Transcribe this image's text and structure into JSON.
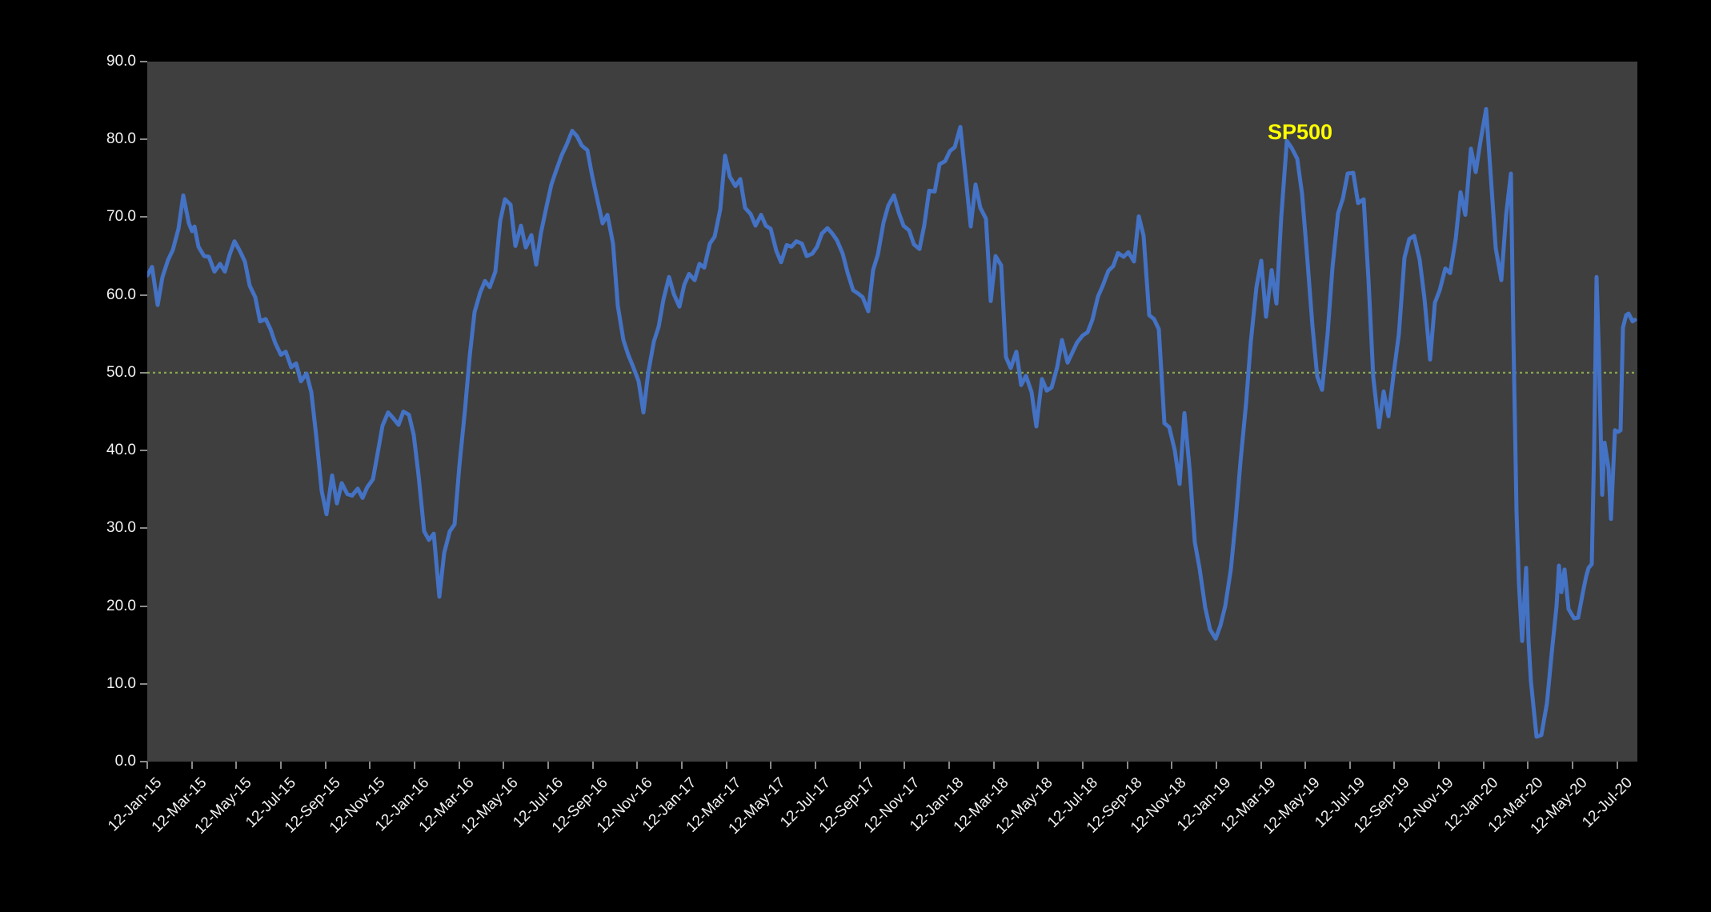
{
  "figure": {
    "background": "#000000",
    "plot_background": "#3F3F3F",
    "tick_color": "#8a8a8a",
    "label_color": "#F2F2F2"
  },
  "chart_data": {
    "type": "line",
    "title": "",
    "xlabel": "",
    "ylabel": "",
    "grid": "off",
    "legend": "none",
    "annotation": {
      "text": "SP500",
      "color": "#FFFF00"
    },
    "y_axis": {
      "min": 0,
      "max": 90,
      "tick_interval": 10,
      "tick_labels": [
        "0.0",
        "10.0",
        "20.0",
        "30.0",
        "40.0",
        "50.0",
        "60.0",
        "70.0",
        "80.0",
        "90.0"
      ]
    },
    "x_axis": {
      "tick_labels": [
        "12-Jan-15",
        "12-Mar-15",
        "12-May-15",
        "12-Jul-15",
        "12-Sep-15",
        "12-Nov-15",
        "12-Jan-16",
        "12-Mar-16",
        "12-May-16",
        "12-Jul-16",
        "12-Sep-16",
        "12-Nov-16",
        "12-Jan-17",
        "12-Mar-17",
        "12-May-17",
        "12-Jul-17",
        "12-Sep-17",
        "12-Nov-17",
        "12-Jan-18",
        "12-Mar-18",
        "12-May-18",
        "12-Jul-18",
        "12-Sep-18",
        "12-Nov-18",
        "12-Jan-19",
        "12-Mar-19",
        "12-May-19",
        "12-Jul-19",
        "12-Sep-19",
        "12-Nov-19",
        "12-Jan-20",
        "12-Mar-20",
        "12-May-20",
        "12-Jul-20"
      ]
    },
    "reference_line": {
      "value": 50.0,
      "color": "#87A84E",
      "style": "dotted"
    },
    "series": [
      {
        "name": "SP500",
        "color": "#4472C4",
        "points": [
          [
            184,
            62.5
          ],
          [
            190,
            63.6
          ],
          [
            197,
            58.7
          ],
          [
            203,
            62.3
          ],
          [
            210,
            64.5
          ],
          [
            216,
            65.8
          ],
          [
            223,
            68.5
          ],
          [
            229,
            72.8
          ],
          [
            236,
            69.2
          ],
          [
            240,
            68.2
          ],
          [
            243,
            68.8
          ],
          [
            248,
            66.2
          ],
          [
            255,
            65.0
          ],
          [
            261,
            64.9
          ],
          [
            268,
            63.0
          ],
          [
            275,
            64.0
          ],
          [
            281,
            63.0
          ],
          [
            287,
            65.2
          ],
          [
            293,
            66.9
          ],
          [
            300,
            65.6
          ],
          [
            306,
            64.3
          ],
          [
            312,
            61.2
          ],
          [
            319,
            59.7
          ],
          [
            325,
            56.6
          ],
          [
            332,
            56.9
          ],
          [
            338,
            55.6
          ],
          [
            344,
            53.8
          ],
          [
            351,
            52.3
          ],
          [
            357,
            52.7
          ],
          [
            364,
            50.7
          ],
          [
            370,
            51.2
          ],
          [
            376,
            48.9
          ],
          [
            383,
            49.9
          ],
          [
            389,
            47.5
          ],
          [
            395,
            42.0
          ],
          [
            402,
            34.8
          ],
          [
            408,
            31.8
          ],
          [
            415,
            36.8
          ],
          [
            421,
            33.2
          ],
          [
            427,
            35.8
          ],
          [
            434,
            34.4
          ],
          [
            440,
            34.2
          ],
          [
            447,
            35.1
          ],
          [
            453,
            33.9
          ],
          [
            459,
            35.3
          ],
          [
            466,
            36.3
          ],
          [
            472,
            39.7
          ],
          [
            478,
            43.2
          ],
          [
            485,
            44.9
          ],
          [
            491,
            44.2
          ],
          [
            498,
            43.3
          ],
          [
            504,
            45.0
          ],
          [
            511,
            44.6
          ],
          [
            517,
            42.0
          ],
          [
            523,
            36.8
          ],
          [
            530,
            29.6
          ],
          [
            536,
            28.5
          ],
          [
            542,
            29.3
          ],
          [
            549,
            21.2
          ],
          [
            555,
            26.8
          ],
          [
            562,
            29.6
          ],
          [
            568,
            30.5
          ],
          [
            574,
            38.0
          ],
          [
            581,
            45.2
          ],
          [
            587,
            52.2
          ],
          [
            593,
            57.8
          ],
          [
            600,
            60.3
          ],
          [
            606,
            61.8
          ],
          [
            612,
            61.0
          ],
          [
            619,
            63.0
          ],
          [
            625,
            69.5
          ],
          [
            631,
            72.3
          ],
          [
            638,
            71.6
          ],
          [
            644,
            66.3
          ],
          [
            651,
            68.9
          ],
          [
            657,
            66.1
          ],
          [
            664,
            67.7
          ],
          [
            670,
            63.9
          ],
          [
            676,
            68.0
          ],
          [
            683,
            71.4
          ],
          [
            689,
            74.2
          ],
          [
            695,
            76.0
          ],
          [
            702,
            78.0
          ],
          [
            708,
            79.3
          ],
          [
            715,
            81.1
          ],
          [
            721,
            80.4
          ],
          [
            727,
            79.2
          ],
          [
            734,
            78.6
          ],
          [
            740,
            75.3
          ],
          [
            747,
            72.0
          ],
          [
            753,
            69.2
          ],
          [
            759,
            70.3
          ],
          [
            766,
            66.6
          ],
          [
            772,
            58.6
          ],
          [
            779,
            54.2
          ],
          [
            785,
            52.3
          ],
          [
            791,
            50.8
          ],
          [
            798,
            48.9
          ],
          [
            804,
            44.9
          ],
          [
            810,
            50.0
          ],
          [
            817,
            54.0
          ],
          [
            823,
            55.9
          ],
          [
            829,
            59.4
          ],
          [
            836,
            62.3
          ],
          [
            842,
            60.1
          ],
          [
            849,
            58.5
          ],
          [
            855,
            61.3
          ],
          [
            861,
            62.7
          ],
          [
            868,
            61.9
          ],
          [
            874,
            64.0
          ],
          [
            880,
            63.5
          ],
          [
            887,
            66.6
          ],
          [
            893,
            67.5
          ],
          [
            900,
            71.0
          ],
          [
            906,
            77.9
          ],
          [
            912,
            75.2
          ],
          [
            919,
            74.0
          ],
          [
            925,
            74.9
          ],
          [
            931,
            71.2
          ],
          [
            938,
            70.4
          ],
          [
            944,
            68.9
          ],
          [
            951,
            70.3
          ],
          [
            957,
            68.9
          ],
          [
            963,
            68.5
          ],
          [
            970,
            65.7
          ],
          [
            976,
            64.2
          ],
          [
            983,
            66.4
          ],
          [
            989,
            66.2
          ],
          [
            995,
            66.9
          ],
          [
            1002,
            66.6
          ],
          [
            1008,
            65.0
          ],
          [
            1015,
            65.3
          ],
          [
            1021,
            66.2
          ],
          [
            1027,
            67.9
          ],
          [
            1034,
            68.6
          ],
          [
            1040,
            67.9
          ],
          [
            1046,
            67.0
          ],
          [
            1053,
            65.3
          ],
          [
            1059,
            62.9
          ],
          [
            1066,
            60.6
          ],
          [
            1072,
            60.2
          ],
          [
            1078,
            59.7
          ],
          [
            1085,
            57.9
          ],
          [
            1091,
            63.2
          ],
          [
            1097,
            65.2
          ],
          [
            1104,
            69.3
          ],
          [
            1110,
            71.5
          ],
          [
            1117,
            72.8
          ],
          [
            1123,
            70.6
          ],
          [
            1129,
            68.9
          ],
          [
            1136,
            68.3
          ],
          [
            1142,
            66.5
          ],
          [
            1149,
            65.9
          ],
          [
            1155,
            69.0
          ],
          [
            1161,
            73.4
          ],
          [
            1168,
            73.3
          ],
          [
            1174,
            76.8
          ],
          [
            1181,
            77.2
          ],
          [
            1187,
            78.5
          ],
          [
            1193,
            79.0
          ],
          [
            1200,
            81.6
          ],
          [
            1206,
            75.8
          ],
          [
            1213,
            68.8
          ],
          [
            1219,
            74.2
          ],
          [
            1225,
            71.2
          ],
          [
            1232,
            69.8
          ],
          [
            1238,
            59.2
          ],
          [
            1244,
            65.0
          ],
          [
            1251,
            63.8
          ],
          [
            1257,
            52.0
          ],
          [
            1263,
            50.6
          ],
          [
            1270,
            52.7
          ],
          [
            1276,
            48.4
          ],
          [
            1282,
            49.6
          ],
          [
            1289,
            47.5
          ],
          [
            1295,
            43.1
          ],
          [
            1302,
            49.2
          ],
          [
            1308,
            47.7
          ],
          [
            1314,
            48.1
          ],
          [
            1321,
            50.7
          ],
          [
            1327,
            54.2
          ],
          [
            1334,
            51.3
          ],
          [
            1340,
            52.6
          ],
          [
            1346,
            53.9
          ],
          [
            1353,
            54.8
          ],
          [
            1359,
            55.2
          ],
          [
            1365,
            56.8
          ],
          [
            1372,
            59.8
          ],
          [
            1378,
            61.2
          ],
          [
            1385,
            63.1
          ],
          [
            1391,
            63.7
          ],
          [
            1397,
            65.4
          ],
          [
            1404,
            64.9
          ],
          [
            1410,
            65.5
          ],
          [
            1417,
            64.3
          ],
          [
            1423,
            70.1
          ],
          [
            1429,
            67.6
          ],
          [
            1436,
            57.4
          ],
          [
            1442,
            56.9
          ],
          [
            1448,
            55.6
          ],
          [
            1455,
            43.5
          ],
          [
            1461,
            43.0
          ],
          [
            1468,
            40.0
          ],
          [
            1474,
            35.7
          ],
          [
            1480,
            44.8
          ],
          [
            1487,
            37.0
          ],
          [
            1493,
            28.2
          ],
          [
            1499,
            24.8
          ],
          [
            1506,
            19.8
          ],
          [
            1512,
            17.0
          ],
          [
            1519,
            15.8
          ],
          [
            1525,
            17.5
          ],
          [
            1531,
            20.0
          ],
          [
            1538,
            24.7
          ],
          [
            1544,
            31.0
          ],
          [
            1550,
            38.5
          ],
          [
            1557,
            46.0
          ],
          [
            1563,
            54.0
          ],
          [
            1570,
            61.0
          ],
          [
            1576,
            64.4
          ],
          [
            1582,
            57.2
          ],
          [
            1589,
            63.2
          ],
          [
            1595,
            58.9
          ],
          [
            1601,
            70.0
          ],
          [
            1608,
            79.8
          ],
          [
            1614,
            78.9
          ],
          [
            1621,
            77.5
          ],
          [
            1627,
            73.0
          ],
          [
            1633,
            65.4
          ],
          [
            1640,
            56.0
          ],
          [
            1646,
            49.5
          ],
          [
            1652,
            47.8
          ],
          [
            1659,
            55.1
          ],
          [
            1665,
            63.5
          ],
          [
            1672,
            70.5
          ],
          [
            1678,
            72.4
          ],
          [
            1684,
            75.6
          ],
          [
            1691,
            75.7
          ],
          [
            1697,
            71.8
          ],
          [
            1704,
            72.3
          ],
          [
            1710,
            62.0
          ],
          [
            1716,
            49.4
          ],
          [
            1723,
            43.0
          ],
          [
            1729,
            47.6
          ],
          [
            1735,
            44.4
          ],
          [
            1742,
            50.3
          ],
          [
            1748,
            55.0
          ],
          [
            1755,
            64.8
          ],
          [
            1761,
            67.2
          ],
          [
            1767,
            67.6
          ],
          [
            1774,
            64.5
          ],
          [
            1780,
            59.5
          ],
          [
            1787,
            51.7
          ],
          [
            1793,
            59.0
          ],
          [
            1799,
            60.6
          ],
          [
            1806,
            63.4
          ],
          [
            1812,
            62.8
          ],
          [
            1819,
            67.2
          ],
          [
            1825,
            73.2
          ],
          [
            1831,
            70.3
          ],
          [
            1838,
            78.8
          ],
          [
            1844,
            75.8
          ],
          [
            1850,
            79.8
          ],
          [
            1857,
            83.9
          ],
          [
            1863,
            75.0
          ],
          [
            1869,
            66.0
          ],
          [
            1876,
            61.9
          ],
          [
            1882,
            70.3
          ],
          [
            1888,
            75.6
          ],
          [
            1891,
            55.1
          ],
          [
            1895,
            32.1
          ],
          [
            1898,
            22.9
          ],
          [
            1902,
            15.5
          ],
          [
            1907,
            24.9
          ],
          [
            1910,
            15.5
          ],
          [
            1913,
            10.3
          ],
          [
            1920,
            3.2
          ],
          [
            1926,
            3.4
          ],
          [
            1933,
            7.5
          ],
          [
            1939,
            14.0
          ],
          [
            1945,
            20.0
          ],
          [
            1948,
            25.2
          ],
          [
            1951,
            21.8
          ],
          [
            1955,
            24.7
          ],
          [
            1960,
            19.6
          ],
          [
            1967,
            18.4
          ],
          [
            1972,
            18.5
          ],
          [
            1978,
            21.8
          ],
          [
            1982,
            23.8
          ],
          [
            1985,
            24.9
          ],
          [
            1989,
            25.4
          ],
          [
            1992,
            40.2
          ],
          [
            1995,
            62.3
          ],
          [
            1998,
            52.2
          ],
          [
            2002,
            34.3
          ],
          [
            2005,
            41.0
          ],
          [
            2010,
            37.7
          ],
          [
            2013,
            31.2
          ],
          [
            2018,
            42.6
          ],
          [
            2022,
            42.4
          ],
          [
            2025,
            42.6
          ],
          [
            2028,
            55.8
          ],
          [
            2032,
            57.4
          ],
          [
            2035,
            57.6
          ],
          [
            2040,
            56.6
          ],
          [
            2043,
            56.8
          ]
        ]
      }
    ]
  }
}
